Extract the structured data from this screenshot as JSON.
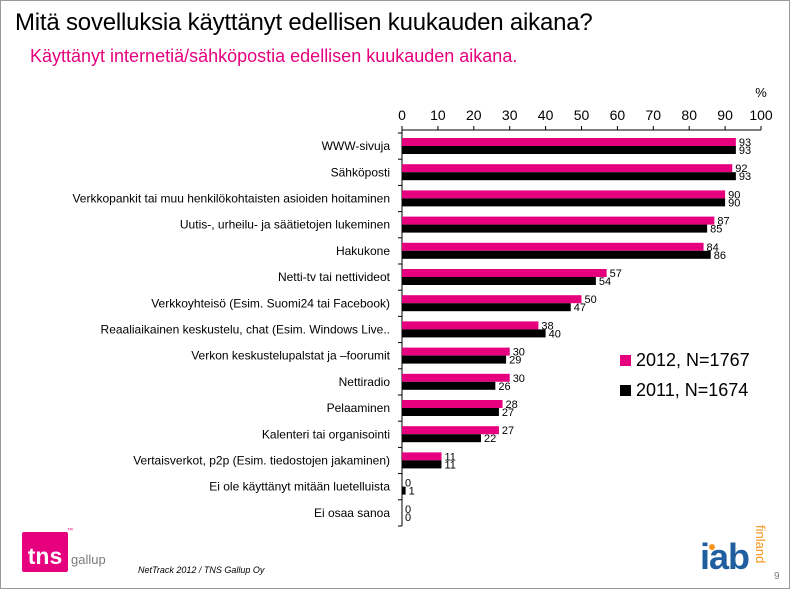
{
  "header": {
    "title": "Mitä sovelluksia käyttänyt edellisen kuukauden aikana?",
    "subtitle": "Käyttänyt internetiä/sähköpostia edellisen kuukauden aikana."
  },
  "colors": {
    "series_2012": "#e6007e",
    "series_2011": "#000000"
  },
  "chart_data": {
    "type": "bar",
    "orientation": "horizontal",
    "unit_label": "%",
    "xlim": [
      0,
      100
    ],
    "x_ticks": [
      "0",
      "10",
      "20",
      "30",
      "40",
      "50",
      "60",
      "70",
      "80",
      "90",
      "100"
    ],
    "grid": false,
    "legend_position": "right",
    "categories": [
      "WWW-sivuja",
      "Sähköposti",
      "Verkkopankit tai muu henkilökohtaisten asioiden hoitaminen",
      "Uutis-, urheilu- ja säätietojen lukeminen",
      "Hakukone",
      "Netti-tv tai nettivideot",
      "Verkkoyhteisö (Esim. Suomi24 tai Facebook)",
      "Reaaliaikainen keskustelu, chat (Esim. Windows Live..",
      "Verkon keskustelupalstat ja –foorumit",
      "Nettiradio",
      "Pelaaminen",
      "Kalenteri tai organisointi",
      "Vertaisverkot, p2p (Esim. tiedostojen jakaminen)",
      "Ei ole käyttänyt mitään luetelluista",
      "Ei osaa sanoa"
    ],
    "series": [
      {
        "name": "2012, N=1767",
        "color": "#e6007e",
        "values": [
          93,
          92,
          90,
          87,
          84,
          57,
          50,
          38,
          30,
          30,
          28,
          27,
          11,
          0,
          0
        ]
      },
      {
        "name": "2011, N=1674",
        "color": "#000000",
        "values": [
          93,
          93,
          90,
          85,
          86,
          54,
          47,
          40,
          29,
          26,
          27,
          22,
          11,
          1,
          0
        ]
      }
    ]
  },
  "legend": {
    "items": [
      {
        "label": "2012, N=1767",
        "color": "#e6007e"
      },
      {
        "label": "2011, N=1674",
        "color": "#000000"
      }
    ]
  },
  "footer": {
    "source": "NetTrack 2012 / TNS Gallup Oy",
    "page_number": "9",
    "tns_text": "tns",
    "tns_gallup": "gallup",
    "tns_tm": "™",
    "iab_text": "iab",
    "iab_country": "finland"
  }
}
